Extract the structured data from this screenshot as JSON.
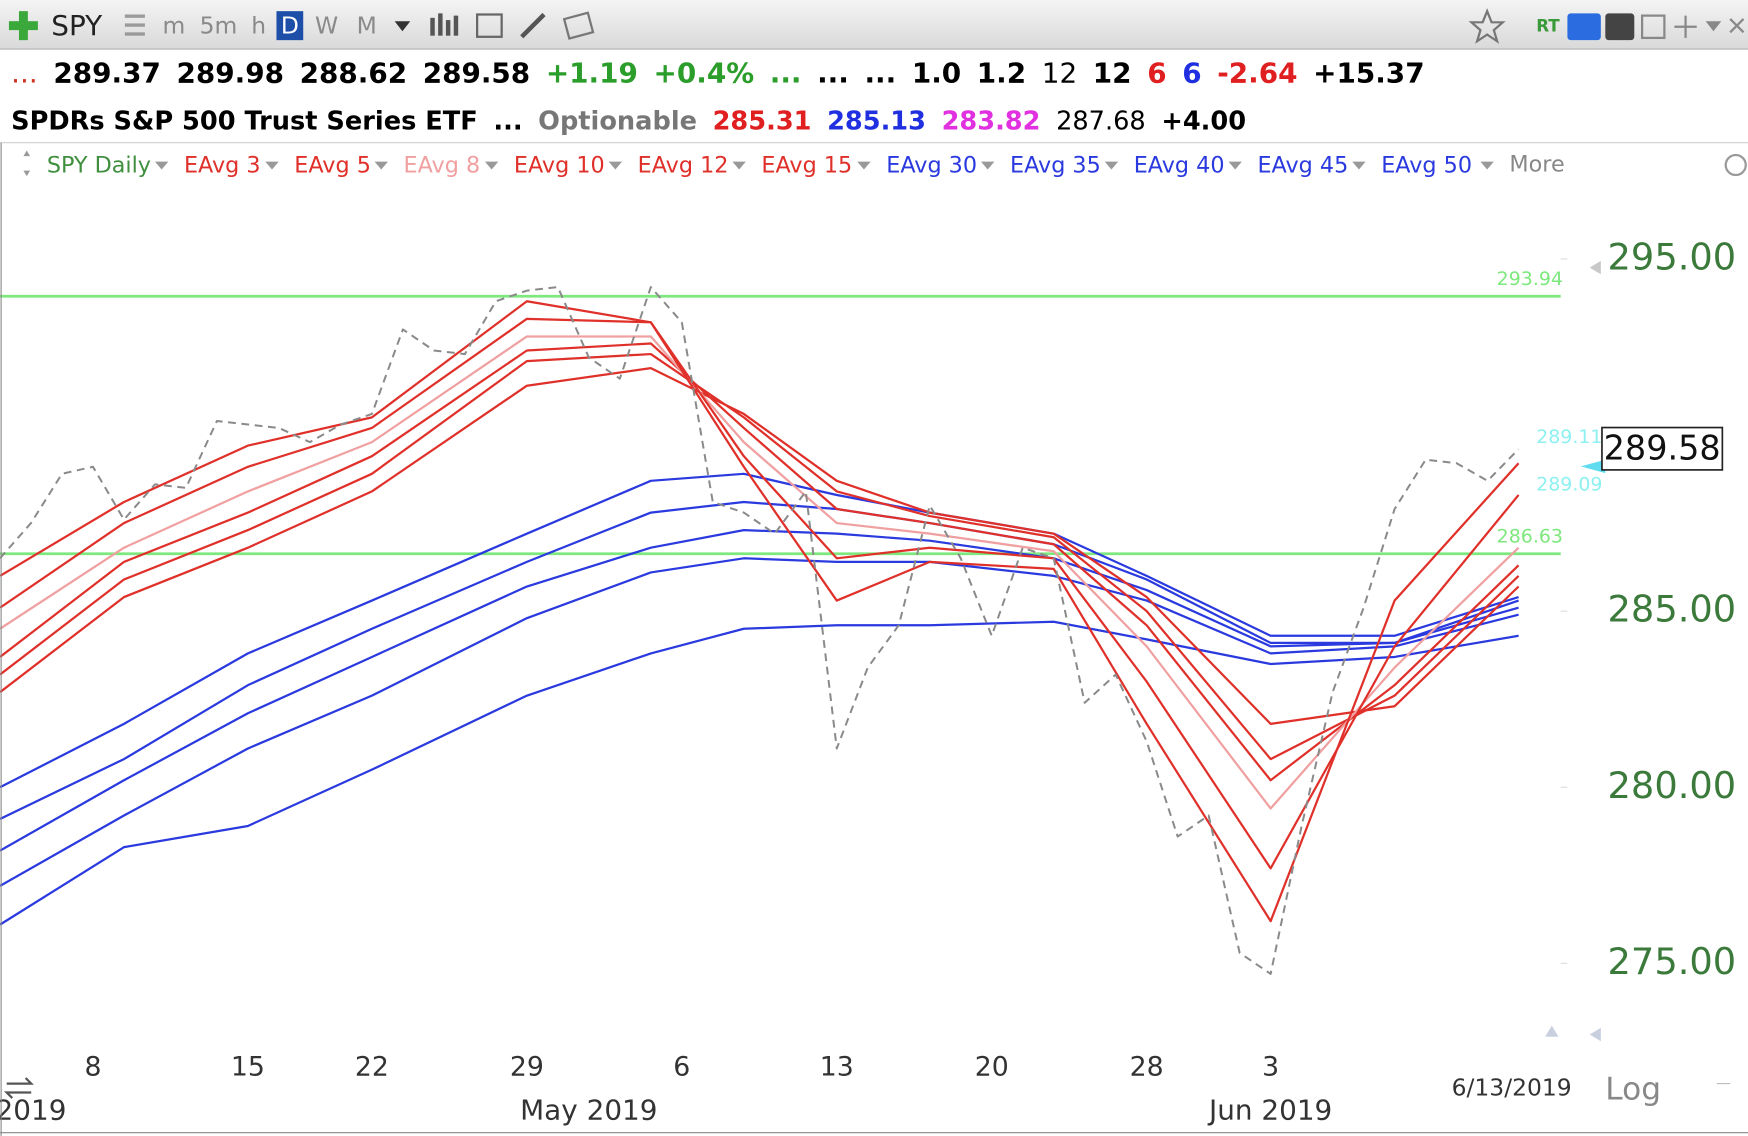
{
  "toolbar": {
    "symbol": "SPY",
    "intervals": [
      "m",
      "5m",
      "h",
      "D",
      "W",
      "M"
    ],
    "active_interval": 3,
    "rt": "RT"
  },
  "quote": {
    "row1": [
      {
        "text": "...",
        "color": "#d03020",
        "bold": false
      },
      {
        "text": "289.37",
        "color": "#000000",
        "bold": true
      },
      {
        "text": "289.98",
        "color": "#000000",
        "bold": true
      },
      {
        "text": "288.62",
        "color": "#000000",
        "bold": true
      },
      {
        "text": "289.58",
        "color": "#000000",
        "bold": true
      },
      {
        "text": "+1.19",
        "color": "#2a9d2a",
        "bold": true
      },
      {
        "text": "+0.4%",
        "color": "#2a9d2a",
        "bold": true
      },
      {
        "text": "...",
        "color": "#2a9d2a",
        "bold": true
      },
      {
        "text": "...",
        "color": "#000000",
        "bold": true
      },
      {
        "text": "...",
        "color": "#000000",
        "bold": true
      },
      {
        "text": "1.0",
        "color": "#000000",
        "bold": true
      },
      {
        "text": "1.2",
        "color": "#000000",
        "bold": true
      },
      {
        "text": "12",
        "color": "#000000",
        "bold": false
      },
      {
        "text": "12",
        "color": "#000000",
        "bold": true
      },
      {
        "text": "6",
        "color": "#e02020",
        "bold": true
      },
      {
        "text": "6",
        "color": "#2030e0",
        "bold": true
      },
      {
        "text": "-2.64",
        "color": "#e02020",
        "bold": true
      },
      {
        "text": "+15.37",
        "color": "#000000",
        "bold": true
      }
    ],
    "row2": [
      {
        "text": "SPDRs S&P 500 Trust Series ETF",
        "color": "#000000",
        "bold": true
      },
      {
        "text": "...",
        "color": "#000000",
        "bold": true
      },
      {
        "text": "Optionable",
        "color": "#777777",
        "bold": true
      },
      {
        "text": "285.31",
        "color": "#e02020",
        "bold": true
      },
      {
        "text": "285.13",
        "color": "#2030e0",
        "bold": true
      },
      {
        "text": "283.82",
        "color": "#e030e0",
        "bold": true
      },
      {
        "text": "287.68",
        "color": "#000000",
        "bold": false
      },
      {
        "text": "+4.00",
        "color": "#000000",
        "bold": true
      }
    ]
  },
  "chart_data": {
    "type": "line",
    "x": [
      "2019-04-03",
      "2019-04-04",
      "2019-04-05",
      "2019-04-08",
      "2019-04-09",
      "2019-04-10",
      "2019-04-11",
      "2019-04-12",
      "2019-04-15",
      "2019-04-16",
      "2019-04-17",
      "2019-04-18",
      "2019-04-22",
      "2019-04-23",
      "2019-04-24",
      "2019-04-25",
      "2019-04-26",
      "2019-04-29",
      "2019-04-30",
      "2019-05-01",
      "2019-05-02",
      "2019-05-03",
      "2019-05-06",
      "2019-05-07",
      "2019-05-08",
      "2019-05-09",
      "2019-05-10",
      "2019-05-13",
      "2019-05-14",
      "2019-05-15",
      "2019-05-16",
      "2019-05-17",
      "2019-05-20",
      "2019-05-21",
      "2019-05-22",
      "2019-05-23",
      "2019-05-24",
      "2019-05-28",
      "2019-05-29",
      "2019-05-30",
      "2019-05-31",
      "2019-06-03",
      "2019-06-04",
      "2019-06-05",
      "2019-06-06",
      "2019-06-07",
      "2019-06-10",
      "2019-06-11",
      "2019-06-12",
      "2019-06-13"
    ],
    "series": [
      {
        "name": "SPY Daily",
        "color": "#3f8f3f",
        "line_color": "#8a8a8a",
        "dashed": true,
        "values": [
          286.5,
          287.5,
          288.9,
          289.1,
          287.6,
          288.6,
          288.5,
          290.4,
          290.3,
          290.2,
          289.8,
          290.3,
          290.6,
          293.0,
          292.4,
          292.3,
          293.8,
          294.1,
          294.2,
          292.2,
          291.6,
          294.2,
          293.2,
          288.1,
          287.8,
          287.2,
          288.4,
          281.1,
          283.4,
          284.6,
          288.0,
          286.5,
          284.3,
          286.8,
          286.5,
          282.4,
          283.2,
          281.3,
          278.6,
          279.2,
          275.3,
          274.7,
          278.9,
          282.7,
          285.1,
          287.9,
          289.3,
          289.2,
          288.7,
          289.6
        ]
      },
      {
        "name": "EAvg 3",
        "color": "#e0302a",
        "x": [
          "2019-04-03",
          "2019-04-09",
          "2019-04-15",
          "2019-04-22",
          "2019-04-29",
          "2019-05-03",
          "2019-05-08",
          "2019-05-13",
          "2019-05-16",
          "2019-05-22",
          "2019-05-28",
          "2019-06-03",
          "2019-06-07",
          "2019-06-13"
        ],
        "values": [
          286.0,
          288.1,
          289.7,
          290.5,
          293.8,
          293.2,
          289.1,
          285.3,
          286.4,
          286.2,
          281.8,
          276.2,
          285.3,
          289.2
        ]
      },
      {
        "name": "EAvg 5",
        "color": "#e0302a",
        "x": [
          "2019-04-03",
          "2019-04-09",
          "2019-04-15",
          "2019-04-22",
          "2019-04-29",
          "2019-05-03",
          "2019-05-08",
          "2019-05-13",
          "2019-05-16",
          "2019-05-22",
          "2019-05-28",
          "2019-06-03",
          "2019-06-07",
          "2019-06-13"
        ],
        "values": [
          285.1,
          287.5,
          289.1,
          290.2,
          293.3,
          293.2,
          289.4,
          286.5,
          286.8,
          286.5,
          283.0,
          277.7,
          284.0,
          288.3
        ]
      },
      {
        "name": "EAvg 8",
        "color": "#f0a0a0",
        "x": [
          "2019-04-03",
          "2019-04-09",
          "2019-04-15",
          "2019-04-22",
          "2019-04-29",
          "2019-05-03",
          "2019-05-08",
          "2019-05-13",
          "2019-05-16",
          "2019-05-22",
          "2019-05-28",
          "2019-06-03",
          "2019-06-07",
          "2019-06-13"
        ],
        "values": [
          284.5,
          286.8,
          288.4,
          289.8,
          292.8,
          292.8,
          289.8,
          287.5,
          287.2,
          286.7,
          284.0,
          279.4,
          283.4,
          286.8
        ]
      },
      {
        "name": "EAvg 10",
        "color": "#e0302a",
        "x": [
          "2019-04-03",
          "2019-04-09",
          "2019-04-15",
          "2019-04-22",
          "2019-04-29",
          "2019-05-03",
          "2019-05-08",
          "2019-05-13",
          "2019-05-16",
          "2019-05-22",
          "2019-05-28",
          "2019-06-03",
          "2019-06-07",
          "2019-06-13"
        ],
        "values": [
          283.7,
          286.4,
          287.8,
          289.4,
          292.4,
          292.6,
          290.2,
          287.9,
          287.5,
          286.9,
          284.6,
          280.2,
          282.9,
          286.3
        ]
      },
      {
        "name": "EAvg 12",
        "color": "#e0302a",
        "x": [
          "2019-04-03",
          "2019-04-09",
          "2019-04-15",
          "2019-04-22",
          "2019-04-29",
          "2019-05-03",
          "2019-05-08",
          "2019-05-13",
          "2019-05-16",
          "2019-05-22",
          "2019-05-28",
          "2019-06-03",
          "2019-06-07",
          "2019-06-13"
        ],
        "values": [
          283.2,
          285.9,
          287.3,
          288.9,
          292.1,
          292.3,
          290.5,
          288.4,
          287.7,
          287.1,
          285.0,
          280.8,
          282.6,
          286.0
        ]
      },
      {
        "name": "EAvg 15",
        "color": "#e0302a",
        "x": [
          "2019-04-03",
          "2019-04-09",
          "2019-04-15",
          "2019-04-22",
          "2019-04-29",
          "2019-05-03",
          "2019-05-08",
          "2019-05-13",
          "2019-05-16",
          "2019-05-22",
          "2019-05-28",
          "2019-06-03",
          "2019-06-07",
          "2019-06-13"
        ],
        "values": [
          282.7,
          285.4,
          286.8,
          288.4,
          291.4,
          291.9,
          290.6,
          288.7,
          287.8,
          287.2,
          285.4,
          281.8,
          282.3,
          285.7
        ]
      },
      {
        "name": "EAvg 30",
        "color": "#2a3adf",
        "x": [
          "2019-04-03",
          "2019-04-09",
          "2019-04-15",
          "2019-04-22",
          "2019-04-29",
          "2019-05-03",
          "2019-05-08",
          "2019-05-13",
          "2019-05-16",
          "2019-05-22",
          "2019-05-28",
          "2019-06-03",
          "2019-06-07",
          "2019-06-13"
        ],
        "values": [
          280.0,
          281.8,
          283.8,
          285.3,
          287.2,
          288.7,
          288.9,
          288.3,
          287.8,
          287.2,
          286.0,
          284.3,
          284.3,
          285.4
        ]
      },
      {
        "name": "EAvg 35",
        "color": "#2a3adf",
        "x": [
          "2019-04-03",
          "2019-04-09",
          "2019-04-15",
          "2019-04-22",
          "2019-04-29",
          "2019-05-03",
          "2019-05-08",
          "2019-05-13",
          "2019-05-16",
          "2019-05-22",
          "2019-05-28",
          "2019-06-03",
          "2019-06-07",
          "2019-06-13"
        ],
        "values": [
          279.1,
          280.8,
          282.9,
          284.5,
          286.4,
          287.8,
          288.1,
          287.9,
          287.5,
          286.9,
          285.9,
          284.1,
          284.1,
          285.3
        ]
      },
      {
        "name": "EAvg 40",
        "color": "#2a3adf",
        "x": [
          "2019-04-03",
          "2019-04-09",
          "2019-04-15",
          "2019-04-22",
          "2019-04-29",
          "2019-05-03",
          "2019-05-08",
          "2019-05-13",
          "2019-05-16",
          "2019-05-22",
          "2019-05-28",
          "2019-06-03",
          "2019-06-07",
          "2019-06-13"
        ],
        "values": [
          278.2,
          280.2,
          282.1,
          283.7,
          285.7,
          286.8,
          287.3,
          287.2,
          287.0,
          286.5,
          285.6,
          284.0,
          284.1,
          285.1
        ]
      },
      {
        "name": "EAvg 45",
        "color": "#2a3adf",
        "x": [
          "2019-04-03",
          "2019-04-09",
          "2019-04-15",
          "2019-04-22",
          "2019-04-29",
          "2019-05-03",
          "2019-05-08",
          "2019-05-13",
          "2019-05-16",
          "2019-05-22",
          "2019-05-28",
          "2019-06-03",
          "2019-06-07",
          "2019-06-13"
        ],
        "values": [
          277.2,
          279.2,
          281.1,
          282.6,
          284.8,
          286.1,
          286.5,
          286.4,
          286.4,
          286.0,
          285.3,
          283.8,
          284.0,
          284.9
        ]
      },
      {
        "name": "EAvg 50",
        "color": "#2a3adf",
        "x": [
          "2019-04-03",
          "2019-04-09",
          "2019-04-15",
          "2019-04-22",
          "2019-04-29",
          "2019-05-03",
          "2019-05-08",
          "2019-05-13",
          "2019-05-16",
          "2019-05-22",
          "2019-05-28",
          "2019-06-03",
          "2019-06-07",
          "2019-06-13"
        ],
        "values": [
          276.1,
          278.3,
          278.9,
          280.5,
          282.6,
          283.8,
          284.5,
          284.6,
          284.6,
          284.7,
          284.2,
          283.5,
          283.7,
          284.3
        ]
      }
    ],
    "legend_more": "More",
    "ylim": [
      272.6,
      298.3
    ],
    "yticks": [
      {
        "value": 295,
        "label": "295.00"
      },
      {
        "value": 285,
        "label": "285.00"
      },
      {
        "value": 280,
        "label": "280.00"
      },
      {
        "value": 275,
        "label": "275.00"
      }
    ],
    "xticks": [
      {
        "value": "2019-04-08",
        "label": "8"
      },
      {
        "value": "2019-04-15",
        "label": "15"
      },
      {
        "value": "2019-04-22",
        "label": "22"
      },
      {
        "value": "2019-04-29",
        "label": "29"
      },
      {
        "value": "2019-05-06",
        "label": "6"
      },
      {
        "value": "2019-05-13",
        "label": "13"
      },
      {
        "value": "2019-05-20",
        "label": "20"
      },
      {
        "value": "2019-05-28",
        "label": "28"
      },
      {
        "value": "2019-06-03",
        "label": "3"
      }
    ],
    "month_labels": [
      {
        "value": "2019-04-04",
        "label": "2019"
      },
      {
        "value": "2019-05-01",
        "label": "May 2019"
      },
      {
        "value": "2019-06-03",
        "label": "Jun 2019"
      }
    ],
    "levels": [
      {
        "value": 293.94,
        "label": "293.94",
        "color": "#7de87d"
      },
      {
        "value": 286.63,
        "label": "286.63",
        "color": "#7de87d"
      }
    ],
    "markers": [
      {
        "value": 289.11,
        "label": "289.11",
        "color": "#8ef0f0"
      },
      {
        "value": 289.09,
        "label": "289.09",
        "color": "#8ef0f0"
      }
    ],
    "last_price": {
      "value": 289.58,
      "label": "289.58"
    },
    "date_label": "6/13/2019",
    "scale_toggle": "Log",
    "log_scale": false,
    "grid": false
  }
}
